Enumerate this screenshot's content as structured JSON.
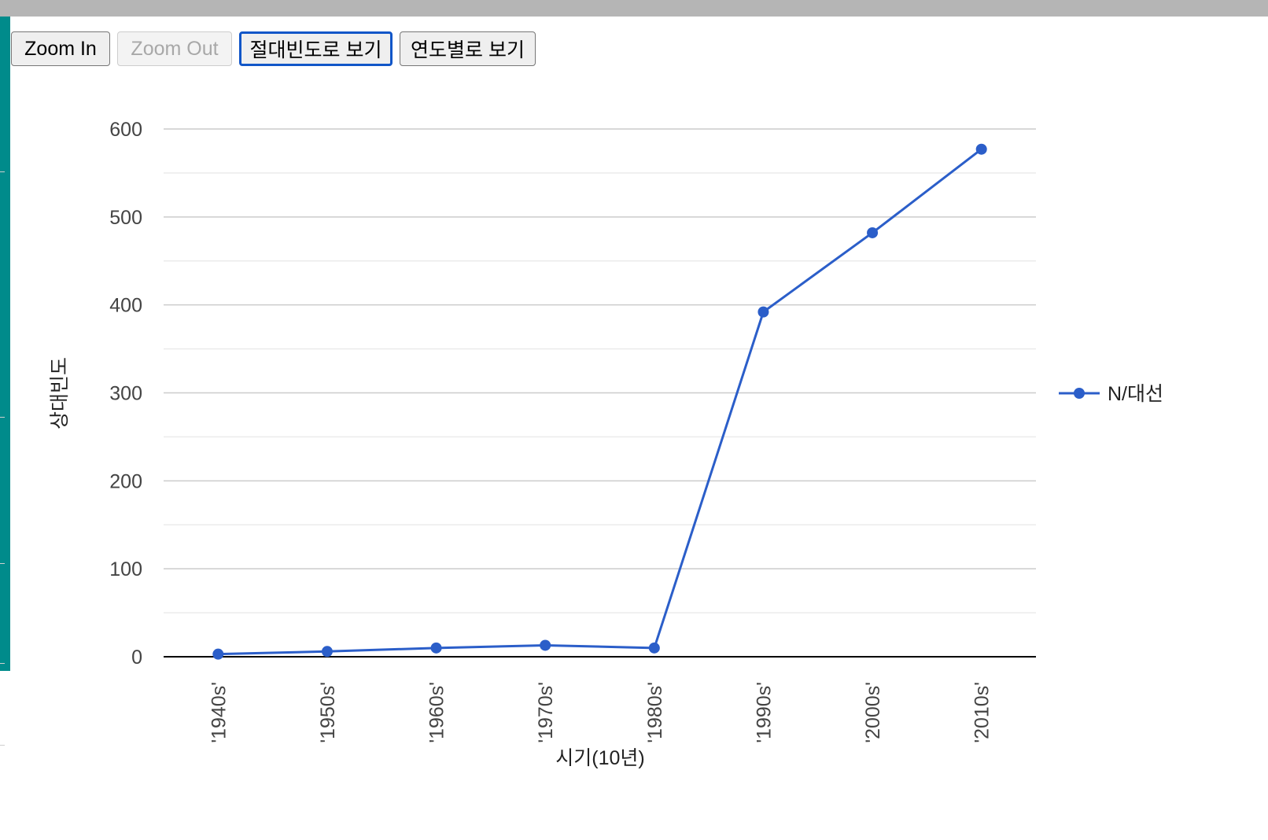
{
  "toolbar": {
    "zoom_in_label": "Zoom In",
    "zoom_out_label": "Zoom Out",
    "absolute_freq_label": "절대빈도로 보기",
    "by_year_label": "연도별로 보기"
  },
  "chart_data": {
    "type": "line",
    "title": "",
    "xlabel": "시기(10년)",
    "ylabel": "상대빈도",
    "categories": [
      "'1940s'",
      "'1950s'",
      "'1960s'",
      "'1970s'",
      "'1980s'",
      "'1990s'",
      "'2000s'",
      "'2010s'"
    ],
    "series": [
      {
        "name": "N/대선",
        "values": [
          3,
          6,
          10,
          13,
          10,
          392,
          482,
          577
        ],
        "color": "#2b5ec9"
      }
    ],
    "ylim": [
      0,
      600
    ],
    "yticks": [
      0,
      100,
      200,
      300,
      400,
      500,
      600
    ],
    "grid": true,
    "minor_grid": true,
    "legend_position": "right",
    "colors": {
      "axis": "#000000",
      "grid": "#cccccc",
      "minor_grid": "#ebebeb"
    }
  }
}
